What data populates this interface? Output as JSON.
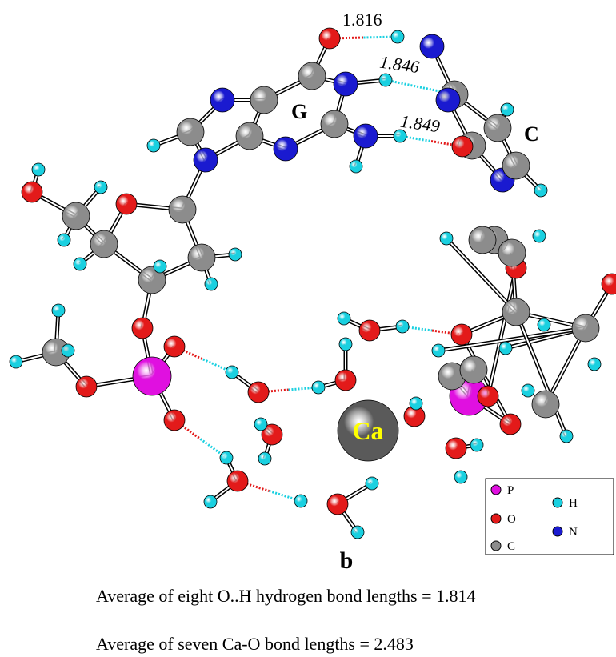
{
  "labels": {
    "hbond_1": "1.816",
    "hbond_2": "1.846",
    "hbond_3": "1.849",
    "base_g": "G",
    "base_c": "C",
    "calcium": "Ca",
    "panel": "b"
  },
  "legend": [
    "P",
    "O",
    "C",
    "H",
    "N"
  ],
  "captions": [
    "Average of eight O..H hydrogen bond lengths = 1.814",
    "Average of seven Ca-O bond lengths = 2.483"
  ]
}
